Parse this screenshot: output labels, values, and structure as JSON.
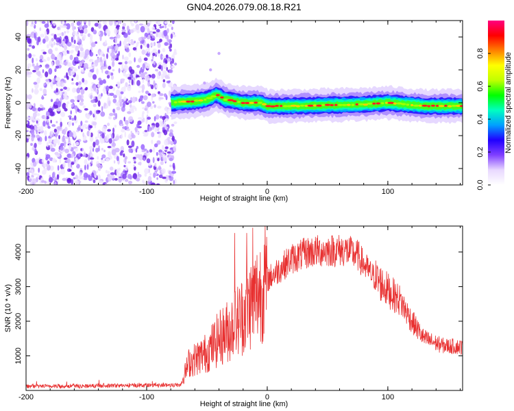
{
  "title": "GN04.2026.079.08.18.R21",
  "chart_data": [
    {
      "type": "heatmap",
      "name": "spectrogram",
      "xlabel": "Height of straight line (km)",
      "ylabel": "Frequency (Hz)",
      "xlim": [
        -200,
        162
      ],
      "ylim": [
        -50,
        50
      ],
      "xticks": [
        -200,
        -100,
        0,
        100
      ],
      "xtick_labels": [
        "-200",
        "-100",
        "0",
        "100"
      ],
      "yticks": [
        -40,
        -20,
        0,
        20,
        40
      ],
      "ytick_labels": [
        "-40",
        "-20",
        "0",
        "20",
        "40"
      ],
      "noise_region_x": [
        -200,
        -76
      ],
      "signal_start_x": -80,
      "signal_track": [
        [
          -80,
          0
        ],
        [
          -60,
          1
        ],
        [
          -50,
          2
        ],
        [
          -42,
          5
        ],
        [
          -35,
          2
        ],
        [
          -20,
          0
        ],
        [
          -5,
          0
        ],
        [
          0,
          -2
        ],
        [
          20,
          -2
        ],
        [
          80,
          -1
        ],
        [
          100,
          0
        ],
        [
          130,
          -2
        ],
        [
          162,
          -2
        ]
      ],
      "meteor_echo": [
        [
          -52,
          12
        ],
        [
          -47,
          20
        ],
        [
          -40,
          30
        ]
      ],
      "colorbar": {
        "label": "Normalized spectral amplitude",
        "range": [
          0,
          1
        ],
        "ticks": [
          0.0,
          0.2,
          0.4,
          0.6,
          0.8
        ],
        "tick_labels": [
          "0.0",
          "0.2",
          "0.4",
          "0.6",
          "0.8"
        ],
        "colors": [
          "#ffffff",
          "#e8d8ff",
          "#8040ff",
          "#2000ff",
          "#00a0ff",
          "#00ffc0",
          "#00ff00",
          "#c0ff00",
          "#ffff00",
          "#ff8000",
          "#ff0000",
          "#ff0080"
        ]
      }
    },
    {
      "type": "line",
      "name": "snr",
      "xlabel": "Height of straight line (km)",
      "ylabel": "SNR (10 * v/v)",
      "xlim": [
        -200,
        162
      ],
      "ylim": [
        0,
        4750
      ],
      "xticks": [
        -200,
        -100,
        0,
        100
      ],
      "xtick_labels": [
        "-200",
        "-100",
        "0",
        "100"
      ],
      "yticks": [
        1000,
        2000,
        3000,
        4000
      ],
      "ytick_labels": [
        "1000",
        "2000",
        "3000",
        "4000"
      ],
      "color": "#e83030",
      "envelope": [
        {
          "x": -200,
          "y": 120
        },
        {
          "x": -150,
          "y": 130
        },
        {
          "x": -100,
          "y": 150
        },
        {
          "x": -72,
          "y": 160
        },
        {
          "x": -65,
          "y": 800
        },
        {
          "x": -50,
          "y": 1100
        },
        {
          "x": -40,
          "y": 1500
        },
        {
          "x": -30,
          "y": 1800
        },
        {
          "x": -20,
          "y": 2200
        },
        {
          "x": -10,
          "y": 2700
        },
        {
          "x": 0,
          "y": 3200
        },
        {
          "x": 10,
          "y": 3500
        },
        {
          "x": 20,
          "y": 3800
        },
        {
          "x": 35,
          "y": 4000
        },
        {
          "x": 50,
          "y": 4050
        },
        {
          "x": 65,
          "y": 4050
        },
        {
          "x": 75,
          "y": 3900
        },
        {
          "x": 85,
          "y": 3400
        },
        {
          "x": 100,
          "y": 2900
        },
        {
          "x": 110,
          "y": 2600
        },
        {
          "x": 120,
          "y": 2000
        },
        {
          "x": 130,
          "y": 1500
        },
        {
          "x": 145,
          "y": 1300
        },
        {
          "x": 162,
          "y": 1250
        }
      ],
      "spikes": [
        {
          "x": -27,
          "y": 4550
        },
        {
          "x": -17,
          "y": 4550
        },
        {
          "x": -12,
          "y": 4700
        },
        {
          "x": -2,
          "y": 3600
        }
      ]
    }
  ]
}
